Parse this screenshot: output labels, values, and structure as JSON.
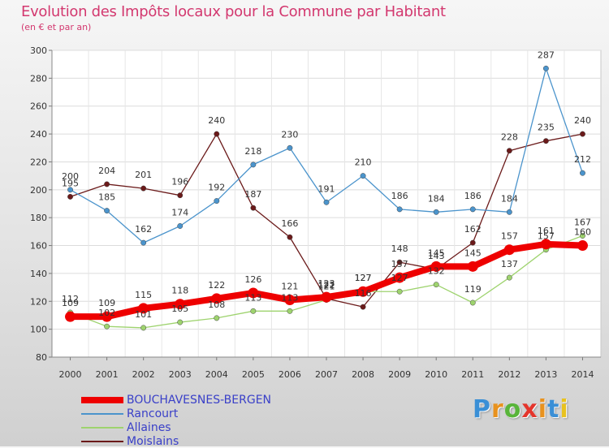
{
  "title": "Evolution des Impôts locaux pour la Commune par Habitant",
  "subtitle": "(en € et par an)",
  "logo": {
    "letters": [
      "P",
      "r",
      "o",
      "x",
      "i",
      "t",
      "i"
    ],
    "colors": [
      "#3a8fd6",
      "#e8921e",
      "#59b53a",
      "#e4352c",
      "#e8921e",
      "#3a8fd6",
      "#e8c21e"
    ]
  },
  "chart_data": {
    "type": "line",
    "x": [
      "2000",
      "2001",
      "2002",
      "2003",
      "2004",
      "2005",
      "2006",
      "2007",
      "2008",
      "2009",
      "2010",
      "2011",
      "2012",
      "2013",
      "2014"
    ],
    "yticks": [
      80,
      100,
      120,
      140,
      160,
      180,
      200,
      220,
      240,
      260,
      280,
      300
    ],
    "ylim": [
      80,
      300
    ],
    "grid": true,
    "legend": "bottom-left",
    "series": [
      {
        "name": "BOUCHAVESNES-BERGEN",
        "color": "#ee0000",
        "values": [
          109,
          109,
          115,
          118,
          122,
          126,
          121,
          123,
          127,
          137,
          145,
          145,
          157,
          161,
          160
        ],
        "labels": [
          "109",
          "109",
          "115",
          "118",
          "122",
          "126",
          "121",
          "123",
          "127",
          "137",
          "145",
          "145",
          "157",
          "161",
          "160"
        ]
      },
      {
        "name": "Rancourt",
        "color": "#4b94cc",
        "values": [
          200,
          185,
          162,
          174,
          192,
          218,
          230,
          191,
          210,
          186,
          184,
          186,
          184,
          287,
          212
        ],
        "labels": [
          "200",
          "185",
          "162",
          "174",
          "192",
          "218",
          "230",
          "191",
          "210",
          "186",
          "184",
          "186",
          "184",
          "287",
          "212"
        ]
      },
      {
        "name": "Allaines",
        "color": "#9ed36e",
        "values": [
          112,
          102,
          101,
          105,
          108,
          113,
          113,
          121,
          127,
          127,
          132,
          119,
          137,
          157,
          167
        ],
        "labels": [
          "112",
          "102",
          "101",
          "105",
          "108",
          "113",
          "113",
          "121",
          "127",
          "127",
          "132",
          "119",
          "137",
          "157",
          "167"
        ]
      },
      {
        "name": "Moislains",
        "color": "#6b1a1a",
        "values": [
          195,
          204,
          201,
          196,
          240,
          187,
          166,
          122,
          116,
          148,
          143,
          162,
          228,
          235,
          240
        ],
        "labels": [
          "195",
          "204",
          "201",
          "196",
          "240",
          "187",
          "166",
          "122",
          "116",
          "148",
          "143",
          "162",
          "228",
          "235",
          "240"
        ]
      }
    ]
  }
}
